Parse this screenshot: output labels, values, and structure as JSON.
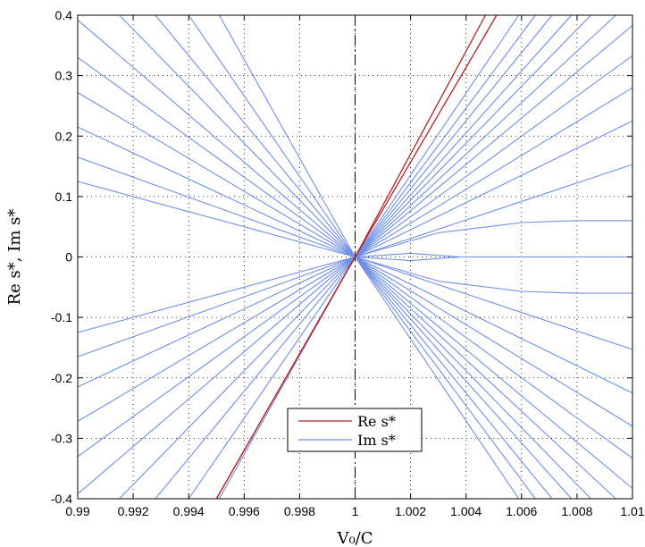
{
  "chart_data": {
    "type": "line",
    "title": "",
    "xlabel": "V₀/C",
    "ylabel": "Re s*, Im s*",
    "xlim": [
      0.99,
      1.01
    ],
    "ylim": [
      -0.4,
      0.4
    ],
    "x_ticks": [
      "0.99",
      "0.992",
      "0.994",
      "0.996",
      "0.998",
      "1",
      "1.002",
      "1.004",
      "1.006",
      "1.008",
      "1.01"
    ],
    "y_ticks": [
      "0.4",
      "0.3",
      "0.2",
      "0.1",
      "0",
      "-0.1",
      "-0.2",
      "-0.3",
      "-0.4"
    ],
    "grid": true,
    "vertical_reference_line_x": 1,
    "legend": {
      "placement": "bottom-center",
      "entries": [
        {
          "label": "Re s*",
          "color": "#b22222"
        },
        {
          "label": "Im s*",
          "color": "#6f8fe6"
        }
      ]
    },
    "series": [
      {
        "name": "Re s*",
        "color": "#b22222",
        "x": [
          0.995,
          1.0,
          1.0047
        ],
        "y": [
          -0.4,
          0.0,
          0.4
        ]
      },
      {
        "name": "Re s*",
        "color": "#b22222",
        "x": [
          0.995,
          1.0,
          1.0051
        ],
        "y": [
          -0.4,
          0.0,
          0.4
        ]
      },
      {
        "name": "Im s*",
        "color": "#6f8fe6",
        "x": [
          0.99,
          1.0
        ],
        "y": [
          0.125,
          0.0
        ]
      },
      {
        "name": "Im s*",
        "color": "#6f8fe6",
        "x": [
          0.99,
          1.0
        ],
        "y": [
          0.165,
          0.0
        ]
      },
      {
        "name": "Im s*",
        "color": "#6f8fe6",
        "x": [
          0.99,
          1.0
        ],
        "y": [
          0.215,
          0.0
        ]
      },
      {
        "name": "Im s*",
        "color": "#6f8fe6",
        "x": [
          0.99,
          1.0
        ],
        "y": [
          0.272,
          0.0
        ]
      },
      {
        "name": "Im s*",
        "color": "#6f8fe6",
        "x": [
          0.99,
          1.0
        ],
        "y": [
          0.33,
          0.0
        ]
      },
      {
        "name": "Im s*",
        "color": "#6f8fe6",
        "x": [
          0.99,
          1.0
        ],
        "y": [
          0.392,
          0.0
        ]
      },
      {
        "name": "Im s*",
        "color": "#6f8fe6",
        "x": [
          0.9915,
          1.0
        ],
        "y": [
          0.4,
          0.0
        ]
      },
      {
        "name": "Im s*",
        "color": "#6f8fe6",
        "x": [
          0.9928,
          1.0
        ],
        "y": [
          0.4,
          0.0
        ]
      },
      {
        "name": "Im s*",
        "color": "#6f8fe6",
        "x": [
          0.994,
          1.0
        ],
        "y": [
          0.4,
          0.0
        ]
      },
      {
        "name": "Im s*",
        "color": "#6f8fe6",
        "x": [
          0.9951,
          1.0
        ],
        "y": [
          0.4,
          0.0
        ]
      },
      {
        "name": "Im s*",
        "color": "#6f8fe6",
        "x": [
          0.99,
          1.0
        ],
        "y": [
          -0.125,
          0.0
        ]
      },
      {
        "name": "Im s*",
        "color": "#6f8fe6",
        "x": [
          0.99,
          1.0
        ],
        "y": [
          -0.165,
          0.0
        ]
      },
      {
        "name": "Im s*",
        "color": "#6f8fe6",
        "x": [
          0.99,
          1.0
        ],
        "y": [
          -0.215,
          0.0
        ]
      },
      {
        "name": "Im s*",
        "color": "#6f8fe6",
        "x": [
          0.99,
          1.0
        ],
        "y": [
          -0.272,
          0.0
        ]
      },
      {
        "name": "Im s*",
        "color": "#6f8fe6",
        "x": [
          0.99,
          1.0
        ],
        "y": [
          -0.33,
          0.0
        ]
      },
      {
        "name": "Im s*",
        "color": "#6f8fe6",
        "x": [
          0.99,
          1.0
        ],
        "y": [
          -0.392,
          0.0
        ]
      },
      {
        "name": "Im s*",
        "color": "#6f8fe6",
        "x": [
          0.9915,
          1.0
        ],
        "y": [
          -0.4,
          0.0
        ]
      },
      {
        "name": "Im s*",
        "color": "#6f8fe6",
        "x": [
          0.9928,
          1.0
        ],
        "y": [
          -0.4,
          0.0
        ]
      },
      {
        "name": "Im s*",
        "color": "#6f8fe6",
        "x": [
          0.994,
          1.0
        ],
        "y": [
          -0.4,
          0.0
        ]
      },
      {
        "name": "Im s*",
        "color": "#6f8fe6",
        "x": [
          0.9951,
          1.0
        ],
        "y": [
          -0.4,
          0.0
        ]
      },
      {
        "name": "Im s*",
        "color": "#6f8fe6",
        "x": [
          1.0,
          1.003,
          1.006,
          1.008,
          1.01
        ],
        "y": [
          0.0,
          0.04,
          0.057,
          0.06,
          0.06
        ]
      },
      {
        "name": "Im s*",
        "color": "#6f8fe6",
        "x": [
          1.0,
          1.003,
          1.006,
          1.008,
          1.01
        ],
        "y": [
          0.0,
          -0.04,
          -0.057,
          -0.06,
          -0.06
        ]
      },
      {
        "name": "Im s*",
        "color": "#6f8fe6",
        "x": [
          1.0,
          1.002,
          1.0038,
          1.01
        ],
        "y": [
          0.0,
          0.006,
          0.0,
          0.0
        ]
      },
      {
        "name": "Im s*",
        "color": "#6f8fe6",
        "x": [
          1.0,
          1.002,
          1.0038
        ],
        "y": [
          0.0,
          -0.006,
          0.0
        ]
      },
      {
        "name": "Im s*",
        "color": "#6f8fe6",
        "x": [
          1.0,
          1.01
        ],
        "y": [
          0.0,
          0.153
        ]
      },
      {
        "name": "Im s*",
        "color": "#6f8fe6",
        "x": [
          1.0,
          1.01
        ],
        "y": [
          0.0,
          0.225
        ]
      },
      {
        "name": "Im s*",
        "color": "#6f8fe6",
        "x": [
          1.0,
          1.01
        ],
        "y": [
          0.0,
          0.28
        ]
      },
      {
        "name": "Im s*",
        "color": "#6f8fe6",
        "x": [
          1.0,
          1.01
        ],
        "y": [
          0.0,
          0.333
        ]
      },
      {
        "name": "Im s*",
        "color": "#6f8fe6",
        "x": [
          1.0,
          1.01
        ],
        "y": [
          0.0,
          0.383
        ]
      },
      {
        "name": "Im s*",
        "color": "#6f8fe6",
        "x": [
          1.0,
          1.0094
        ],
        "y": [
          0.0,
          0.4
        ]
      },
      {
        "name": "Im s*",
        "color": "#6f8fe6",
        "x": [
          1.0,
          1.0085
        ],
        "y": [
          0.0,
          0.4
        ]
      },
      {
        "name": "Im s*",
        "color": "#6f8fe6",
        "x": [
          1.0,
          1.0078
        ],
        "y": [
          0.0,
          0.4
        ]
      },
      {
        "name": "Im s*",
        "color": "#6f8fe6",
        "x": [
          1.0,
          1.0071
        ],
        "y": [
          0.0,
          0.4
        ]
      },
      {
        "name": "Im s*",
        "color": "#6f8fe6",
        "x": [
          1.0,
          1.0065
        ],
        "y": [
          0.0,
          0.4
        ]
      },
      {
        "name": "Im s*",
        "color": "#6f8fe6",
        "x": [
          1.0,
          1.0059
        ],
        "y": [
          0.0,
          0.4
        ]
      },
      {
        "name": "Im s*",
        "color": "#6f8fe6",
        "x": [
          1.0,
          1.01
        ],
        "y": [
          0.0,
          -0.153
        ]
      },
      {
        "name": "Im s*",
        "color": "#6f8fe6",
        "x": [
          1.0,
          1.01
        ],
        "y": [
          0.0,
          -0.225
        ]
      },
      {
        "name": "Im s*",
        "color": "#6f8fe6",
        "x": [
          1.0,
          1.01
        ],
        "y": [
          0.0,
          -0.28
        ]
      },
      {
        "name": "Im s*",
        "color": "#6f8fe6",
        "x": [
          1.0,
          1.01
        ],
        "y": [
          0.0,
          -0.333
        ]
      },
      {
        "name": "Im s*",
        "color": "#6f8fe6",
        "x": [
          1.0,
          1.01
        ],
        "y": [
          0.0,
          -0.383
        ]
      },
      {
        "name": "Im s*",
        "color": "#6f8fe6",
        "x": [
          1.0,
          1.0094
        ],
        "y": [
          0.0,
          -0.4
        ]
      },
      {
        "name": "Im s*",
        "color": "#6f8fe6",
        "x": [
          1.0,
          1.0085
        ],
        "y": [
          0.0,
          -0.4
        ]
      },
      {
        "name": "Im s*",
        "color": "#6f8fe6",
        "x": [
          1.0,
          1.0078
        ],
        "y": [
          0.0,
          -0.4
        ]
      },
      {
        "name": "Im s*",
        "color": "#6f8fe6",
        "x": [
          1.0,
          1.0071
        ],
        "y": [
          0.0,
          -0.4
        ]
      },
      {
        "name": "Im s*",
        "color": "#6f8fe6",
        "x": [
          1.0,
          1.0065
        ],
        "y": [
          0.0,
          -0.4
        ]
      },
      {
        "name": "Im s*",
        "color": "#6f8fe6",
        "x": [
          1.0,
          1.0059
        ],
        "y": [
          0.0,
          -0.4
        ]
      }
    ]
  }
}
